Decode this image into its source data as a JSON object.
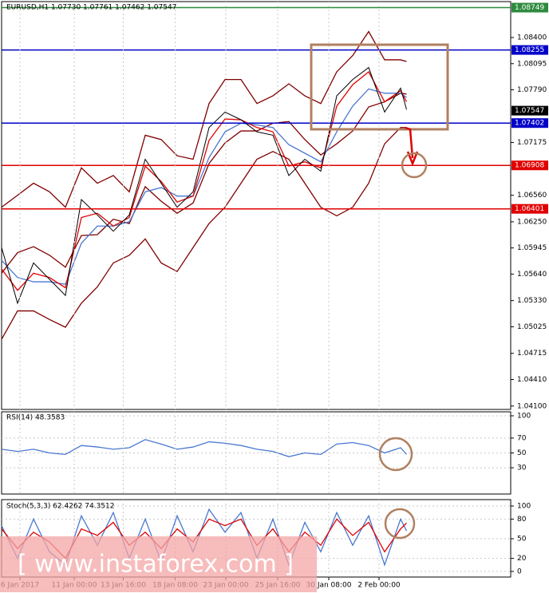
{
  "chart_data": [
    {
      "type": "line",
      "title": "EURUSD,H1  1.07730 1.07761 1.07462 1.07547",
      "x": [
        0,
        4,
        8,
        12,
        16,
        20,
        24,
        28,
        32,
        36,
        40,
        44,
        48,
        52,
        56,
        60,
        64,
        68,
        72,
        76,
        80,
        84,
        88,
        92,
        96,
        100,
        101.5
      ],
      "xlim": [
        0,
        127.6
      ],
      "ylim": [
        1.0407,
        1.0881
      ],
      "yticks": [
        {
          "value": 1.084,
          "label": "1.08400"
        },
        1.08095,
        {
          "value": 1.0779,
          "label": "1.07790"
        },
        1.07175,
        {
          "value": 1.0656,
          "label": "1.06560"
        },
        {
          "value": 1.0625,
          "label": "1.06250"
        },
        1.05945,
        {
          "value": 1.0564,
          "label": "1.05640"
        },
        {
          "value": 1.0533,
          "label": "1.05330"
        },
        1.05025,
        1.04715,
        {
          "value": 1.0441,
          "label": "1.04410"
        },
        {
          "value": 1.041,
          "label": "1.04100"
        }
      ],
      "series": [
        {
          "color": "#800000",
          "values": [
            1.0642,
            1.0656,
            1.067,
            1.066,
            1.0642,
            1.0688,
            1.067,
            1.0679,
            1.066,
            1.0726,
            1.0721,
            1.0702,
            1.0698,
            1.0763,
            1.0791,
            1.0791,
            1.0763,
            1.0772,
            1.0786,
            1.0772,
            1.0763,
            1.08,
            1.0819,
            1.0847,
            1.0814,
            1.0814,
            1.0812
          ]
        },
        {
          "color": "#800000",
          "values": [
            1.0488,
            1.0521,
            1.0521,
            1.0511,
            1.0502,
            1.053,
            1.0549,
            1.0577,
            1.0586,
            1.0605,
            1.0577,
            1.0567,
            1.0595,
            1.0623,
            1.0642,
            1.067,
            1.0698,
            1.0707,
            1.0698,
            1.067,
            1.0642,
            1.0632,
            1.0642,
            1.067,
            1.0716,
            1.0735,
            1.0735
          ]
        },
        {
          "color": "#800000",
          "values": [
            1.0565,
            1.0589,
            1.0596,
            1.0586,
            1.0572,
            1.0609,
            1.061,
            1.0628,
            1.0623,
            1.0666,
            1.0649,
            1.0635,
            1.0647,
            1.0693,
            1.0717,
            1.0731,
            1.0731,
            1.074,
            1.0742,
            1.0721,
            1.0703,
            1.0716,
            1.0731,
            1.0759,
            1.0765,
            1.0775,
            1.0774
          ]
        },
        {
          "color": "#4a78d0",
          "values": [
            1.058,
            1.056,
            1.0555,
            1.0555,
            1.0552,
            1.06,
            1.062,
            1.062,
            1.0625,
            1.066,
            1.0665,
            1.0655,
            1.0655,
            1.07,
            1.073,
            1.074,
            1.0738,
            1.0735,
            1.0715,
            1.0705,
            1.0695,
            1.073,
            1.076,
            1.078,
            1.0775,
            1.0775,
            1.077
          ]
        },
        {
          "color": "#e00000",
          "values": [
            1.057,
            1.0545,
            1.0565,
            1.056,
            1.0548,
            1.063,
            1.0635,
            1.062,
            1.063,
            1.069,
            1.0672,
            1.0648,
            1.0655,
            1.072,
            1.0745,
            1.0744,
            1.0735,
            1.073,
            1.069,
            1.0695,
            1.0688,
            1.076,
            1.0785,
            1.08,
            1.0765,
            1.0778,
            1.0765
          ]
        },
        {
          "color": "#000000",
          "values": [
            1.0595,
            1.053,
            1.0577,
            1.0558,
            1.0539,
            1.0651,
            1.0633,
            1.0614,
            1.0633,
            1.0698,
            1.067,
            1.0642,
            1.066,
            1.0735,
            1.0753,
            1.0744,
            1.073,
            1.0726,
            1.0679,
            1.0698,
            1.0684,
            1.0772,
            1.0791,
            1.0805,
            1.0753,
            1.0781,
            1.0756
          ]
        }
      ],
      "levels": [
        {
          "value": 1.08749,
          "color": "#2e8b3e"
        },
        {
          "value": 1.08255,
          "color": "#0000c8"
        },
        {
          "value": 1.07402,
          "color": "#0000c8"
        },
        {
          "value": 1.06908,
          "color": "#e00000"
        },
        {
          "value": 1.06401,
          "color": "#e00000"
        }
      ],
      "last_price": 1.07547,
      "grid": true
    },
    {
      "type": "line",
      "title": "RSI(14) 48.3583",
      "x": [
        0,
        4,
        8,
        12,
        16,
        20,
        24,
        28,
        32,
        36,
        40,
        44,
        48,
        52,
        56,
        60,
        64,
        68,
        72,
        76,
        80,
        84,
        88,
        92,
        96,
        100,
        101.5
      ],
      "xlim": [
        0,
        127.6
      ],
      "ylim": [
        0,
        100
      ],
      "yticks": [
        100,
        70,
        50,
        30
      ],
      "series": [
        {
          "color": "#4a78d0",
          "values": [
            55,
            52,
            55,
            50,
            48,
            60,
            58,
            55,
            57,
            68,
            62,
            55,
            58,
            65,
            63,
            60,
            55,
            52,
            45,
            50,
            48,
            62,
            64,
            60,
            50,
            57,
            48
          ]
        }
      ],
      "grid": true
    },
    {
      "type": "line",
      "title": "Stoch(5,3,3) 62.4262 74.3512",
      "x": [
        0,
        4,
        8,
        12,
        16,
        20,
        24,
        28,
        32,
        36,
        40,
        44,
        48,
        52,
        56,
        60,
        64,
        68,
        72,
        76,
        80,
        84,
        88,
        92,
        96,
        100,
        101.5
      ],
      "xlim": [
        0,
        127.6
      ],
      "ylim": [
        0,
        100
      ],
      "yticks": [
        100,
        80,
        50,
        20,
        0
      ],
      "xticks": [
        {
          "value": 4.6,
          "label": "6 Jan 2017"
        },
        {
          "value": 18.2,
          "label": "11 Jan 00:00"
        },
        {
          "value": 30.5,
          "label": "13 Jan 16:00"
        },
        {
          "value": 43.5,
          "label": "18 Jan 08:00"
        },
        {
          "value": 56.2,
          "label": "23 Jan 00:00"
        },
        {
          "value": 69.2,
          "label": "25 Jan 16:00"
        },
        {
          "value": 82,
          "label": "30 Jan 08:00"
        },
        {
          "value": 94.6,
          "label": "2 Feb 00:00"
        }
      ],
      "series": [
        {
          "color": "#4a78d0",
          "values": [
            70,
            20,
            80,
            30,
            10,
            85,
            40,
            90,
            20,
            80,
            15,
            85,
            30,
            95,
            60,
            90,
            20,
            80,
            10,
            75,
            30,
            90,
            40,
            85,
            10,
            80,
            62
          ]
        },
        {
          "color": "#e00000",
          "values": [
            65,
            35,
            60,
            45,
            20,
            65,
            55,
            75,
            40,
            60,
            35,
            65,
            45,
            80,
            70,
            80,
            40,
            65,
            30,
            60,
            40,
            80,
            55,
            75,
            30,
            65,
            74
          ]
        }
      ],
      "grid": true
    }
  ],
  "watermark": "[ www.instaforex.com ]"
}
